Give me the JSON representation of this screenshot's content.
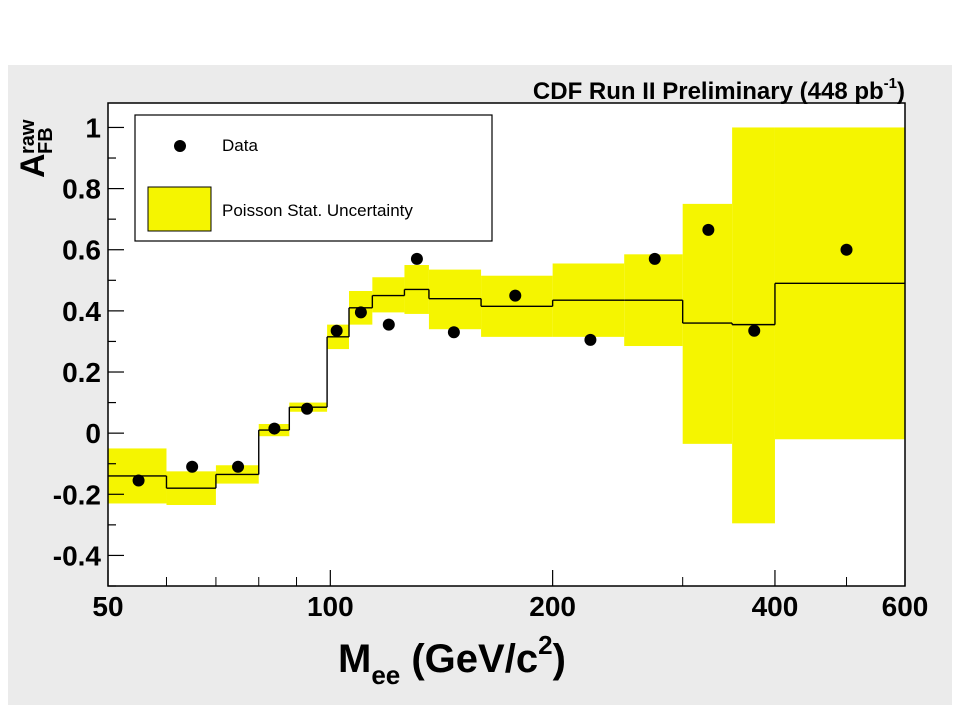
{
  "chart_data": {
    "type": "scatter",
    "title_main": "CDF Run II Preliminary (448 pb",
    "title_sup": "-1",
    "title_close": ")",
    "xlabel": {
      "main": "M",
      "sub": "ee",
      "unit": " (GeV/c",
      "sup": "2",
      "close": ")"
    },
    "ylabel": {
      "main": "A",
      "sub": "FB",
      "sup": "raw"
    },
    "xscale": "log",
    "xlim": [
      50,
      600
    ],
    "ylim": [
      -0.5,
      1.08
    ],
    "x_ticks": [
      {
        "value": 50,
        "label": "50"
      },
      {
        "value": 100,
        "label": "100"
      },
      {
        "value": 200,
        "label": "200"
      },
      {
        "value": 400,
        "label": "400"
      },
      {
        "value": 600,
        "label": "600"
      }
    ],
    "y_ticks": [
      {
        "value": -0.4,
        "label": "-0.4"
      },
      {
        "value": -0.2,
        "label": "-0.2"
      },
      {
        "value": 0,
        "label": "0"
      },
      {
        "value": 0.2,
        "label": "0.2"
      },
      {
        "value": 0.4,
        "label": "0.4"
      },
      {
        "value": 0.6,
        "label": "0.6"
      },
      {
        "value": 0.8,
        "label": "0.8"
      },
      {
        "value": 1,
        "label": "1"
      }
    ],
    "legend": {
      "position": "top-left",
      "entries": [
        {
          "label": "Data",
          "marker": "dot"
        },
        {
          "label": "Poisson Stat. Uncertainty",
          "marker": "box"
        }
      ]
    },
    "colors": {
      "band": "#f5f500",
      "data": "#000000",
      "line": "#000000",
      "frame_bg": "#ffffff",
      "outer_bg": "#ebebeb"
    },
    "bins": [
      {
        "lo": 50,
        "hi": 60,
        "prediction": -0.14,
        "band": [
          -0.23,
          -0.05
        ],
        "data": {
          "x": 55,
          "y": -0.155
        }
      },
      {
        "lo": 60,
        "hi": 70,
        "prediction": -0.18,
        "band": [
          -0.235,
          -0.125
        ],
        "data": {
          "x": 65,
          "y": -0.11
        }
      },
      {
        "lo": 70,
        "hi": 80,
        "prediction": -0.135,
        "band": [
          -0.165,
          -0.105
        ],
        "data": {
          "x": 75,
          "y": -0.11
        }
      },
      {
        "lo": 80,
        "hi": 88,
        "prediction": 0.01,
        "band": [
          -0.01,
          0.03
        ],
        "data": {
          "x": 84,
          "y": 0.015
        }
      },
      {
        "lo": 88,
        "hi": 99,
        "prediction": 0.085,
        "band": [
          0.07,
          0.1
        ],
        "data": {
          "x": 93,
          "y": 0.08
        }
      },
      {
        "lo": 99,
        "hi": 106,
        "prediction": 0.315,
        "band": [
          0.275,
          0.355
        ],
        "data": {
          "x": 102,
          "y": 0.335
        }
      },
      {
        "lo": 106,
        "hi": 114,
        "prediction": 0.41,
        "band": [
          0.355,
          0.465
        ],
        "data": {
          "x": 110,
          "y": 0.395
        }
      },
      {
        "lo": 114,
        "hi": 126,
        "prediction": 0.45,
        "band": [
          0.395,
          0.51
        ],
        "data": {
          "x": 120,
          "y": 0.355
        }
      },
      {
        "lo": 126,
        "hi": 136,
        "prediction": 0.47,
        "band": [
          0.39,
          0.55
        ],
        "data": {
          "x": 131,
          "y": 0.57
        }
      },
      {
        "lo": 136,
        "hi": 160,
        "prediction": 0.44,
        "band": [
          0.34,
          0.535
        ],
        "data": {
          "x": 147,
          "y": 0.33
        }
      },
      {
        "lo": 160,
        "hi": 200,
        "prediction": 0.415,
        "band": [
          0.315,
          0.515
        ],
        "data": {
          "x": 178,
          "y": 0.45
        }
      },
      {
        "lo": 200,
        "hi": 250,
        "prediction": 0.435,
        "band": [
          0.315,
          0.555
        ],
        "data": {
          "x": 225,
          "y": 0.305
        }
      },
      {
        "lo": 250,
        "hi": 300,
        "prediction": 0.435,
        "band": [
          0.285,
          0.585
        ],
        "data": {
          "x": 275,
          "y": 0.57
        }
      },
      {
        "lo": 300,
        "hi": 350,
        "prediction": 0.36,
        "band": [
          -0.035,
          0.75
        ],
        "data": {
          "x": 325,
          "y": 0.665
        }
      },
      {
        "lo": 350,
        "hi": 400,
        "prediction": 0.355,
        "band": [
          -0.295,
          1.0
        ],
        "data": {
          "x": 375,
          "y": 0.335
        }
      },
      {
        "lo": 400,
        "hi": 600,
        "prediction": 0.49,
        "band": [
          -0.02,
          1.0
        ],
        "data": {
          "x": 500,
          "y": 0.6
        }
      }
    ]
  }
}
